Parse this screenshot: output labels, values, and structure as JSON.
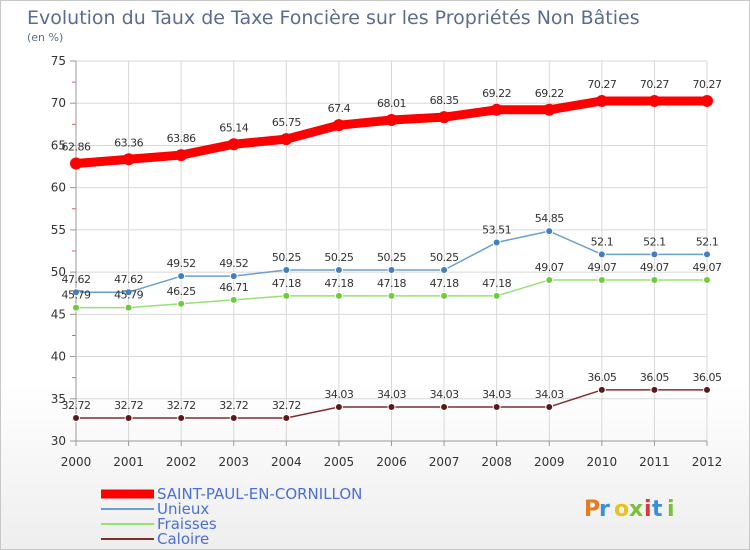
{
  "chart_data": {
    "type": "line",
    "title": "Evolution du Taux de Taxe Foncière sur les Propriétés Non Bâties",
    "subtitle": "(en %)",
    "x": [
      "2000",
      "2001",
      "2002",
      "2003",
      "2004",
      "2005",
      "2006",
      "2007",
      "2008",
      "2009",
      "2010",
      "2011",
      "2012"
    ],
    "ylim": [
      30,
      75
    ],
    "yticks": [
      "30",
      "35",
      "40",
      "45",
      "50",
      "55",
      "60",
      "65",
      "70",
      "75"
    ],
    "grid": true,
    "legend_position": "bottom-left",
    "series": [
      {
        "name": "SAINT-PAUL-EN-CORNILLON",
        "color": "#ff0000",
        "values": [
          62.86,
          63.36,
          63.86,
          65.14,
          65.75,
          67.4,
          68.01,
          68.35,
          69.22,
          69.22,
          70.27,
          70.27,
          70.27
        ],
        "labels": [
          "62.86",
          "63.36",
          "63.86",
          "65.14",
          "65.75",
          "67.4",
          "68.01",
          "68.35",
          "69.22",
          "69.22",
          "70.27",
          "70.27",
          "70.27"
        ]
      },
      {
        "name": "Unieux",
        "color": "#6a9fd0",
        "marker_color": "#3f7fc2",
        "values": [
          47.62,
          47.62,
          49.52,
          49.52,
          50.25,
          50.25,
          50.25,
          50.25,
          53.51,
          54.85,
          52.1,
          52.1,
          52.1
        ],
        "labels": [
          "47.62",
          "47.62",
          "49.52",
          "49.52",
          "50.25",
          "50.25",
          "50.25",
          "50.25",
          "53.51",
          "54.85",
          "52.1",
          "52.1",
          "52.1"
        ]
      },
      {
        "name": "Fraisses",
        "color": "#98e078",
        "marker_color": "#6ccc3c",
        "values": [
          45.79,
          45.79,
          46.25,
          46.71,
          47.18,
          47.18,
          47.18,
          47.18,
          47.18,
          49.07,
          49.07,
          49.07,
          49.07
        ],
        "labels": [
          "45.79",
          "45.79",
          "46.25",
          "46.71",
          "47.18",
          "47.18",
          "47.18",
          "47.18",
          "47.18",
          "49.07",
          "49.07",
          "49.07",
          "49.07"
        ]
      },
      {
        "name": "Caloire",
        "color": "#7a3030",
        "marker_color": "#5a1a1a",
        "values": [
          32.72,
          32.72,
          32.72,
          32.72,
          32.72,
          34.03,
          34.03,
          34.03,
          34.03,
          34.03,
          36.05,
          36.05,
          36.05
        ],
        "labels": [
          "32.72",
          "32.72",
          "32.72",
          "32.72",
          "32.72",
          "34.03",
          "34.03",
          "34.03",
          "34.03",
          "34.03",
          "36.05",
          "36.05",
          "36.05"
        ]
      }
    ]
  },
  "logo": {
    "text": "Proxiti",
    "colors": [
      "#e87a1e",
      "#3a8fd8",
      "#e8c21e",
      "#7bbf3a",
      "#d83a3a",
      "#3a8fd8",
      "#7bbf3a"
    ]
  }
}
